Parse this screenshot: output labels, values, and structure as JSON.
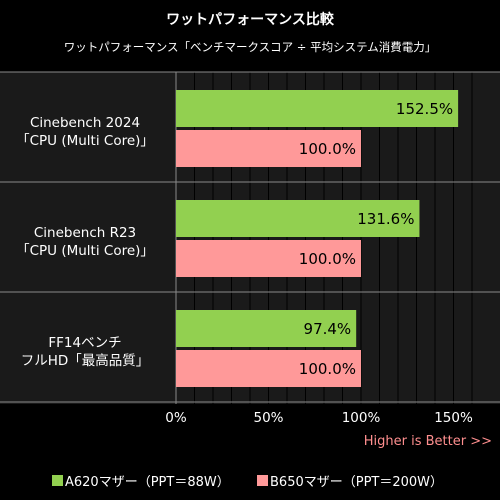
{
  "title": "ワットパフォーマンス比較",
  "subtitle": "ワットパフォーマンス「ベンチマークスコア ÷ 平均システム消費電力」",
  "note": "Higher is Better >>",
  "colors": {
    "series_a": "#92d050",
    "series_b": "#ff9999",
    "background": "#000000",
    "plot_bg": "#1a1a1a",
    "note": "#ff8f8f"
  },
  "chart_data": {
    "type": "bar",
    "orientation": "horizontal",
    "categories": [
      [
        "Cinebench  2024",
        "「CPU (Multi Core)」"
      ],
      [
        "Cinebench  R23",
        "「CPU (Multi Core)」"
      ],
      [
        "FF14ベンチ",
        "フルHD「最高品質」"
      ]
    ],
    "series": [
      {
        "name": "A620マザー（PPT＝88W）",
        "values": [
          152.5,
          131.6,
          97.4
        ],
        "labels": [
          "152.5%",
          "131.6%",
          "97.4%"
        ]
      },
      {
        "name": "B650マザー（PPT＝200W）",
        "values": [
          100.0,
          100.0,
          100.0
        ],
        "labels": [
          "100.0%",
          "100.0%",
          "100.0%"
        ]
      }
    ],
    "xlim": [
      0,
      150
    ],
    "xticks": [
      0,
      50,
      100,
      150
    ],
    "xtick_labels": [
      "0%",
      "50%",
      "100%",
      "150%"
    ],
    "grid": true,
    "legend_placement": "bottom"
  }
}
